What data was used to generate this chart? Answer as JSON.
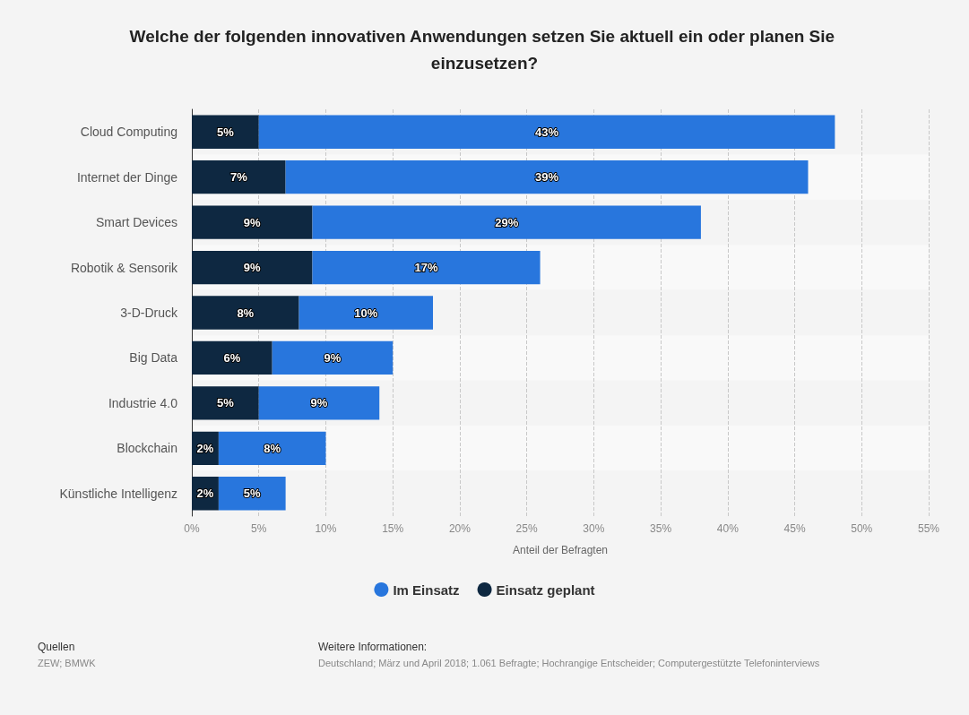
{
  "chart_data": {
    "type": "bar",
    "orientation": "horizontal",
    "stacked": true,
    "title": "Welche der folgenden innovativen Anwendungen setzen Sie aktuell ein oder planen Sie einzusetzen?",
    "xlabel": "Anteil der Befragten",
    "categories": [
      "Cloud Computing",
      "Internet der Dinge",
      "Smart Devices",
      "Robotik & Sensorik",
      "3-D-Druck",
      "Big Data",
      "Industrie 4.0",
      "Blockchain",
      "Künstliche Intelligenz"
    ],
    "series": [
      {
        "name": "Einsatz geplant",
        "color": "#0e2841",
        "values": [
          5,
          7,
          9,
          9,
          8,
          6,
          5,
          2,
          2
        ],
        "value_labels": [
          "5%",
          "7%",
          "9%",
          "9%",
          "8%",
          "6%",
          "5%",
          "2%",
          "2%"
        ]
      },
      {
        "name": "Im Einsatz",
        "color": "#2876dd",
        "values": [
          43,
          39,
          29,
          17,
          10,
          9,
          9,
          8,
          5
        ],
        "value_labels": [
          "43%",
          "39%",
          "29%",
          "17%",
          "10%",
          "9%",
          "9%",
          "8%",
          "5%"
        ]
      }
    ],
    "xlim": [
      0,
      55
    ],
    "xticks": [
      {
        "value": 0,
        "label": "0%"
      },
      {
        "value": 5,
        "label": "5%"
      },
      {
        "value": 10,
        "label": "10%"
      },
      {
        "value": 15,
        "label": "15%"
      },
      {
        "value": 20,
        "label": "20%"
      },
      {
        "value": 25,
        "label": "25%"
      },
      {
        "value": 30,
        "label": "30%"
      },
      {
        "value": 35,
        "label": "35%"
      },
      {
        "value": 40,
        "label": "40%"
      },
      {
        "value": 45,
        "label": "45%"
      },
      {
        "value": 50,
        "label": "50%"
      },
      {
        "value": 55,
        "label": "55%"
      }
    ],
    "grid": "x",
    "legend": "bottom",
    "annotations": [
      "Quellen",
      "ZEW; BMWK",
      "Weitere Informationen:",
      "Deutschland; März und April 2018; 1.061 Befragte; Hochrangige Entscheider; Computergestützte Telefoninterviews"
    ]
  }
}
